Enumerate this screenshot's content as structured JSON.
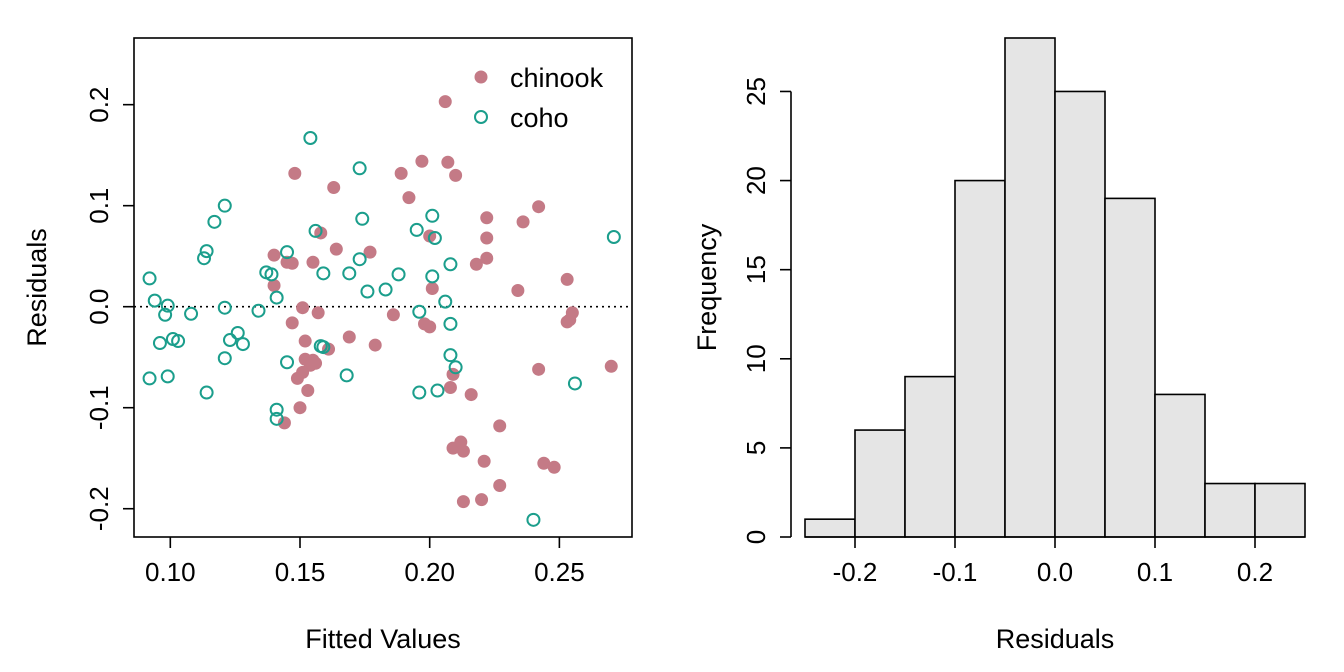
{
  "chart_data": [
    {
      "type": "scatter",
      "xlabel": "Fitted Values",
      "ylabel": "Residuals",
      "xlim": [
        0.086,
        0.278
      ],
      "ylim": [
        -0.228,
        0.266
      ],
      "xticks": [
        "0.10",
        "0.15",
        "0.20",
        "0.25"
      ],
      "xtick_values": [
        0.1,
        0.15,
        0.2,
        0.25
      ],
      "yticks": [
        "-0.2",
        "-0.1",
        "0.0",
        "0.1",
        "0.2"
      ],
      "ytick_values": [
        -0.2,
        -0.1,
        0.0,
        0.1,
        0.2
      ],
      "reference_line": {
        "y": 0.0,
        "style": "dotted"
      },
      "legend_position": "top-right",
      "colors": {
        "chinook": "#C47A86",
        "coho": "#1B9E8C"
      },
      "series": [
        {
          "name": "chinook",
          "marker": "filled-circle",
          "points": [
            [
              0.14,
              0.051
            ],
            [
              0.145,
              0.044
            ],
            [
              0.147,
              0.043
            ],
            [
              0.14,
              0.021
            ],
            [
              0.151,
              -0.001
            ],
            [
              0.147,
              -0.016
            ],
            [
              0.157,
              -0.006
            ],
            [
              0.152,
              -0.034
            ],
            [
              0.161,
              -0.042
            ],
            [
              0.155,
              -0.053
            ],
            [
              0.152,
              -0.052
            ],
            [
              0.154,
              -0.058
            ],
            [
              0.156,
              -0.056
            ],
            [
              0.151,
              -0.065
            ],
            [
              0.149,
              -0.071
            ],
            [
              0.153,
              -0.083
            ],
            [
              0.15,
              -0.1
            ],
            [
              0.144,
              -0.115
            ],
            [
              0.148,
              0.132
            ],
            [
              0.163,
              0.118
            ],
            [
              0.155,
              0.044
            ],
            [
              0.158,
              0.073
            ],
            [
              0.164,
              0.057
            ],
            [
              0.177,
              0.054
            ],
            [
              0.169,
              -0.03
            ],
            [
              0.179,
              -0.038
            ],
            [
              0.186,
              -0.008
            ],
            [
              0.189,
              0.132
            ],
            [
              0.192,
              0.108
            ],
            [
              0.197,
              0.144
            ],
            [
              0.198,
              -0.017
            ],
            [
              0.2,
              -0.02
            ],
            [
              0.2,
              0.07
            ],
            [
              0.201,
              0.018
            ],
            [
              0.206,
              0.203
            ],
            [
              0.207,
              0.143
            ],
            [
              0.21,
              0.13
            ],
            [
              0.209,
              -0.067
            ],
            [
              0.208,
              -0.08
            ],
            [
              0.209,
              -0.14
            ],
            [
              0.212,
              -0.134
            ],
            [
              0.213,
              -0.143
            ],
            [
              0.216,
              -0.087
            ],
            [
              0.218,
              0.042
            ],
            [
              0.222,
              0.088
            ],
            [
              0.222,
              0.068
            ],
            [
              0.222,
              0.048
            ],
            [
              0.221,
              -0.153
            ],
            [
              0.22,
              -0.191
            ],
            [
              0.213,
              -0.193
            ],
            [
              0.227,
              -0.118
            ],
            [
              0.227,
              -0.177
            ],
            [
              0.234,
              0.016
            ],
            [
              0.236,
              0.084
            ],
            [
              0.242,
              0.099
            ],
            [
              0.242,
              -0.062
            ],
            [
              0.244,
              -0.155
            ],
            [
              0.248,
              -0.159
            ],
            [
              0.253,
              0.027
            ],
            [
              0.255,
              -0.006
            ],
            [
              0.254,
              -0.013
            ],
            [
              0.253,
              -0.015
            ],
            [
              0.27,
              -0.059
            ]
          ]
        },
        {
          "name": "coho",
          "marker": "open-circle",
          "points": [
            [
              0.092,
              0.028
            ],
            [
              0.094,
              0.006
            ],
            [
              0.099,
              0.001
            ],
            [
              0.098,
              -0.008
            ],
            [
              0.096,
              -0.036
            ],
            [
              0.101,
              -0.032
            ],
            [
              0.103,
              -0.034
            ],
            [
              0.108,
              -0.007
            ],
            [
              0.092,
              -0.071
            ],
            [
              0.099,
              -0.069
            ],
            [
              0.113,
              0.048
            ],
            [
              0.114,
              0.055
            ],
            [
              0.117,
              0.084
            ],
            [
              0.121,
              0.1
            ],
            [
              0.121,
              -0.001
            ],
            [
              0.123,
              -0.033
            ],
            [
              0.126,
              -0.026
            ],
            [
              0.128,
              -0.037
            ],
            [
              0.121,
              -0.051
            ],
            [
              0.114,
              -0.085
            ],
            [
              0.134,
              -0.004
            ],
            [
              0.137,
              0.034
            ],
            [
              0.139,
              0.032
            ],
            [
              0.141,
              0.009
            ],
            [
              0.145,
              0.054
            ],
            [
              0.145,
              -0.055
            ],
            [
              0.141,
              -0.102
            ],
            [
              0.141,
              -0.111
            ],
            [
              0.154,
              0.167
            ],
            [
              0.156,
              0.075
            ],
            [
              0.159,
              0.033
            ],
            [
              0.158,
              -0.039
            ],
            [
              0.159,
              -0.04
            ],
            [
              0.168,
              -0.068
            ],
            [
              0.169,
              0.033
            ],
            [
              0.173,
              0.137
            ],
            [
              0.174,
              0.087
            ],
            [
              0.173,
              0.047
            ],
            [
              0.176,
              0.015
            ],
            [
              0.183,
              0.017
            ],
            [
              0.188,
              0.032
            ],
            [
              0.195,
              0.076
            ],
            [
              0.196,
              -0.005
            ],
            [
              0.196,
              -0.085
            ],
            [
              0.201,
              0.09
            ],
            [
              0.202,
              0.068
            ],
            [
              0.201,
              0.03
            ],
            [
              0.206,
              0.005
            ],
            [
              0.208,
              0.042
            ],
            [
              0.208,
              -0.017
            ],
            [
              0.208,
              -0.048
            ],
            [
              0.21,
              -0.06
            ],
            [
              0.203,
              -0.083
            ],
            [
              0.24,
              -0.211
            ],
            [
              0.256,
              -0.076
            ],
            [
              0.271,
              0.069
            ]
          ]
        }
      ]
    },
    {
      "type": "bar",
      "subtype": "histogram",
      "xlabel": "Residuals",
      "ylabel": "Frequency",
      "bin_edges": [
        -0.25,
        -0.2,
        -0.15,
        -0.1,
        -0.05,
        0.0,
        0.05,
        0.1,
        0.15,
        0.2,
        0.25
      ],
      "values": [
        1,
        6,
        9,
        20,
        28,
        25,
        19,
        8,
        3,
        3
      ],
      "xlim": [
        -0.25,
        0.25
      ],
      "ylim": [
        0,
        28
      ],
      "xticks": [
        "-0.2",
        "-0.1",
        "0.0",
        "0.1",
        "0.2"
      ],
      "xtick_values": [
        -0.2,
        -0.1,
        0.0,
        0.1,
        0.2
      ],
      "yticks": [
        "0",
        "5",
        "10",
        "15",
        "20",
        "25"
      ],
      "ytick_values": [
        0,
        5,
        10,
        15,
        20,
        25
      ],
      "bar_color": "#E5E5E5"
    }
  ]
}
